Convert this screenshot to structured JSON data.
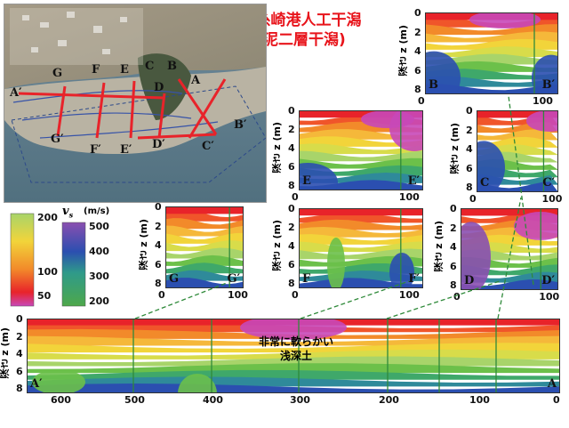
{
  "title_line1": "尾道糸崎港人工干潟",
  "title_line2": "(砂泥二層干潟)",
  "photo_labels": [
    {
      "t": "A"
    },
    {
      "t": "B"
    },
    {
      "t": "C"
    },
    {
      "t": "D"
    },
    {
      "t": "E"
    },
    {
      "t": "F"
    },
    {
      "t": "G"
    },
    {
      "t": "A′"
    },
    {
      "t": "B′"
    },
    {
      "t": "C′"
    },
    {
      "t": "D′"
    },
    {
      "t": "E′"
    },
    {
      "t": "F′"
    },
    {
      "t": "G′"
    }
  ],
  "legend": {
    "vs_label": "v",
    "vs_sub": "s",
    "vs_unit": "(m/s)",
    "small_ticks": [
      "200",
      "100",
      "50"
    ],
    "large_ticks": [
      "500",
      "400",
      "300",
      "200"
    ]
  },
  "depth_label": "深さ z (m)",
  "annotation_line1": "非常に軟らかい",
  "annotation_line2": "浅深土",
  "panels": {
    "BB": {
      "left": "B",
      "right": "B′",
      "yticks": [
        "0",
        "2",
        "4",
        "6",
        "8"
      ],
      "xticks": [
        "0",
        "100"
      ]
    },
    "EE": {
      "left": "E",
      "right": "E′",
      "yticks": [
        "0",
        "2",
        "4",
        "6",
        "8"
      ],
      "xticks": [
        "0",
        "100"
      ]
    },
    "CC": {
      "left": "C",
      "right": "C′",
      "yticks": [
        "0",
        "2",
        "4",
        "6",
        "8"
      ],
      "xticks": [
        "0",
        "100"
      ]
    },
    "GG": {
      "left": "G",
      "right": "G′",
      "yticks": [
        "0",
        "2",
        "4",
        "6",
        "8"
      ],
      "xticks": [
        "0",
        "100"
      ]
    },
    "FF": {
      "left": "F",
      "right": "F′",
      "yticks": [
        "0",
        "2",
        "4",
        "6",
        "8"
      ],
      "xticks": [
        "0",
        "100"
      ]
    },
    "DD": {
      "left": "D",
      "right": "D′",
      "yticks": [
        "0",
        "2",
        "4",
        "6",
        "8"
      ],
      "xticks": [
        "0",
        "100"
      ]
    },
    "AA": {
      "left": "A′",
      "right": "A",
      "yticks": [
        "0",
        "2",
        "4",
        "6",
        "8"
      ],
      "xticks": [
        "600",
        "500",
        "400",
        "300",
        "200",
        "100",
        "0"
      ]
    }
  },
  "colors": {
    "title": "#e8141b",
    "deep": "#2b4fb0",
    "green": "#6cc04a",
    "yellow": "#f2d43a",
    "orange": "#f28a2a",
    "red": "#e8232a",
    "magenta": "#c848b8",
    "dashed": "#2f8a3a"
  }
}
